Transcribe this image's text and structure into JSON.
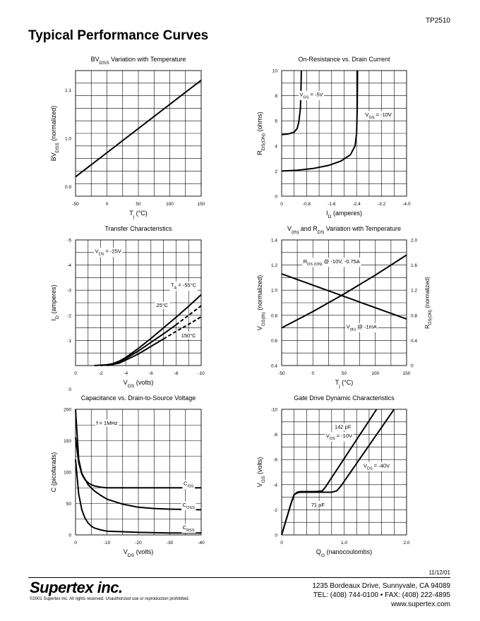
{
  "header": {
    "part_number": "TP2510",
    "section_title": "Typical Performance Curves"
  },
  "footer": {
    "date": "11/12/01",
    "logo_text": "Supertex inc.",
    "copyright": "©2001 Supertex Inc. All rights reserved. Unauthorized use or reproduction prohibited.",
    "address": "1235 Bordeaux  Drive, Sunnyvale, CA 94089",
    "phone_fax": "TEL: (408) 744-0100 • FAX: (408) 222-4895",
    "website": "www.supertex.com"
  },
  "chart_data": [
    {
      "type": "line",
      "title": "BV|DSS| Variation with Temperature",
      "xlabel": "T|j| (°C)",
      "ylabel": "BV|DSS| (normalized)",
      "xlim": [
        -50,
        150
      ],
      "ylim": [
        0.88,
        1.14
      ],
      "x_ticks": [
        -50,
        0,
        50,
        100,
        150
      ],
      "x_tick_labels": [
        "-50",
        "0",
        "50",
        "100",
        "150"
      ],
      "y_ticks": [
        0.9,
        1.0,
        1.1
      ],
      "y_tick_labels": [
        "0.9",
        "1.0",
        "1.1"
      ],
      "grid": true,
      "series": [
        {
          "x": [
            -50,
            150
          ],
          "y": [
            0.92,
            1.12
          ],
          "dashed": false
        }
      ],
      "annotations": []
    },
    {
      "type": "line",
      "title": "On-Resistance vs. Drain Current",
      "xlabel": "I|D| (amperes)",
      "ylabel": "R|DS(ON)| (ohms)",
      "xlim": [
        0,
        -4.0
      ],
      "ylim": [
        0,
        10
      ],
      "x_ticks": [
        0,
        -0.8,
        -1.6,
        -2.4,
        -3.2,
        -4.0
      ],
      "x_tick_labels": [
        "0",
        "-0.8",
        "-1.6",
        "-2.4",
        "-3.2",
        "-4.0"
      ],
      "y_ticks": [
        0,
        2,
        4,
        6,
        8,
        10
      ],
      "y_tick_labels": [
        "0",
        "2",
        "4",
        "6",
        "8",
        "10"
      ],
      "grid": true,
      "series": [
        {
          "name": "V|GS| = -5V",
          "x": [
            0,
            -0.2,
            -0.4,
            -0.5,
            -0.55,
            -0.6,
            -0.62,
            -0.63
          ],
          "y": [
            4.9,
            4.95,
            5.1,
            5.4,
            5.9,
            7.0,
            8.5,
            10
          ],
          "dashed": false
        },
        {
          "name": "V|GS| = -10V",
          "x": [
            0,
            -0.5,
            -1.0,
            -1.5,
            -1.9,
            -2.2,
            -2.35,
            -2.4,
            -2.42,
            -2.43
          ],
          "y": [
            2.0,
            2.07,
            2.2,
            2.45,
            2.8,
            3.3,
            4.0,
            5.0,
            7.0,
            10
          ],
          "dashed": false
        }
      ],
      "annotations": [
        {
          "text": "V|GS| = -5V",
          "x": -0.95,
          "y": 8.1
        },
        {
          "text": "V|GS| = -10V",
          "x": -3.1,
          "y": 6.5
        }
      ]
    },
    {
      "type": "line",
      "title": "Transfer Characteristics",
      "xlabel": "V|GS| (volts)",
      "ylabel": "I|D| (amperes)",
      "xlim": [
        0,
        -10
      ],
      "ylim": [
        0,
        -5
      ],
      "x_ticks": [
        0,
        -2,
        -4,
        -6,
        -8,
        -10
      ],
      "x_tick_labels": [
        "0",
        "-2",
        "-4",
        "-6",
        "-8",
        "-10"
      ],
      "y_ticks": [
        -1,
        -2,
        -3,
        -4,
        -5
      ],
      "y_tick_labels": [
        "-1",
        "-2",
        "-3",
        "-4",
        "-5"
      ],
      "extra_labels": [
        "0"
      ],
      "grid": true,
      "series": [
        {
          "name": "T|A| = -55°C",
          "x": [
            -1.5,
            -2.5,
            -3.0,
            -3.5,
            -4.0,
            -5,
            -6,
            -7,
            -8,
            -9,
            -10
          ],
          "y": [
            0,
            -0.03,
            -0.08,
            -0.18,
            -0.32,
            -0.68,
            -1.08,
            -1.5,
            -1.92,
            -2.36,
            -2.82
          ],
          "dashed": false
        },
        {
          "name": "25°C",
          "x": [
            -2.0,
            -3.0,
            -3.5,
            -4.0,
            -5,
            -6,
            -7,
            -8
          ],
          "y": [
            0,
            -0.06,
            -0.16,
            -0.28,
            -0.58,
            -0.92,
            -1.26,
            -1.62
          ],
          "dashed": false
        },
        {
          "name": "25°C-dashed",
          "x": [
            -8,
            -9,
            -10
          ],
          "y": [
            -1.62,
            -2.0,
            -2.38
          ],
          "dashed": true
        },
        {
          "name": "150°C",
          "x": [
            -2.5,
            -3.5,
            -4.0,
            -5,
            -6,
            -7
          ],
          "y": [
            0,
            -0.1,
            -0.22,
            -0.46,
            -0.76,
            -1.06
          ],
          "dashed": false
        },
        {
          "name": "150°C-dashed",
          "x": [
            -7,
            -8,
            -9,
            -10
          ],
          "y": [
            -1.06,
            -1.36,
            -1.64,
            -1.94
          ],
          "dashed": true
        }
      ],
      "annotations": [
        {
          "text": "V|DS| = -25V",
          "x": -2.6,
          "y": -4.55
        },
        {
          "text": "T|A| = -55°C",
          "x": -8.6,
          "y": -3.2
        },
        {
          "text": "25°C",
          "x": -6.9,
          "y": -2.4
        },
        {
          "text": "150°C",
          "x": -9.0,
          "y": -1.2
        }
      ]
    },
    {
      "type": "line",
      "title": "V|(th)| and R|DS| Variation with Temperature",
      "xlabel": "T|j| (°C)",
      "ylabel": "V|GS(th)| (normalized)",
      "ylabel_right": "R|DS(ON)| (normalized)",
      "xlim": [
        -50,
        150
      ],
      "ylim": [
        0.4,
        1.4
      ],
      "y2lim": [
        0,
        2.0
      ],
      "x_ticks": [
        -50,
        0,
        50,
        100,
        150
      ],
      "x_tick_labels": [
        "-50",
        "0",
        "50",
        "100",
        "150"
      ],
      "y_ticks": [
        0.4,
        0.6,
        0.8,
        1.0,
        1.2,
        1.4
      ],
      "y_tick_labels": [
        "0.4",
        "0.6",
        "0.8",
        "1.0",
        "1.2",
        "1.4"
      ],
      "y2_ticks": [
        0,
        0.4,
        0.8,
        1.2,
        1.6,
        2.0
      ],
      "y2_tick_labels": [
        "0",
        "0.4",
        "0.8",
        "1.2",
        "1.6",
        "2.0"
      ],
      "grid": true,
      "series": [
        {
          "name": "R|DS (ON)| @ -10V, -0.75A",
          "x": [
            -50,
            0,
            50,
            100,
            150
          ],
          "y": [
            0.7,
            0.83,
            0.97,
            1.12,
            1.28
          ],
          "dashed": false
        },
        {
          "name": "V|(th)| @ -1mA",
          "x": [
            -50,
            0,
            50,
            100,
            150
          ],
          "y": [
            1.13,
            1.04,
            0.95,
            0.86,
            0.77
          ],
          "dashed": false
        }
      ],
      "annotations": [
        {
          "text": "R|DS (ON)| @ -10V, -0.75A",
          "x": 30,
          "y": 1.23
        },
        {
          "text": "V|(th)| @ -1mA",
          "x": 78,
          "y": 0.71
        }
      ]
    },
    {
      "type": "line",
      "title": "Capacitance vs. Drain-to-Source Voltage",
      "xlabel": "V|DS| (volts)",
      "ylabel": "C (picofarads)",
      "xlim": [
        0,
        -40
      ],
      "ylim": [
        0,
        200
      ],
      "x_ticks": [
        0,
        -10,
        -20,
        -30,
        -40
      ],
      "x_tick_labels": [
        "0",
        "-10",
        "-20",
        "-30",
        "-40"
      ],
      "y_ticks": [
        0,
        50,
        100,
        150,
        200
      ],
      "y_tick_labels": [
        "0",
        "50",
        "100",
        "150",
        "200"
      ],
      "grid": true,
      "series": [
        {
          "name": "C|ISS|",
          "x": [
            0,
            -1,
            -2,
            -3,
            -4,
            -5,
            -6,
            -8,
            -10,
            -40
          ],
          "y": [
            155,
            115,
            97,
            88,
            83,
            80,
            78,
            76,
            75,
            75
          ],
          "dashed": false
        },
        {
          "name": "C|OSS|",
          "x": [
            0,
            -1,
            -2,
            -4,
            -6,
            -8,
            -10,
            -15,
            -20,
            -25,
            -30,
            -40
          ],
          "y": [
            200,
            120,
            98,
            80,
            70,
            63,
            57,
            49,
            44,
            42,
            41,
            40
          ],
          "dashed": false
        },
        {
          "name": "C|RSS|",
          "x": [
            0,
            -1,
            -2,
            -3,
            -4,
            -5,
            -6,
            -8,
            -10,
            -15,
            -20,
            -30,
            -40
          ],
          "y": [
            120,
            65,
            40,
            27,
            19,
            14,
            11,
            8,
            6,
            5,
            4,
            3,
            3
          ],
          "dashed": false
        }
      ],
      "annotations": [
        {
          "text": "f = 1MHz",
          "x": -10,
          "y": 178
        },
        {
          "text": "C|ISS|",
          "x": -36,
          "y": 82
        },
        {
          "text": "C|OSS|",
          "x": -36,
          "y": 48
        },
        {
          "text": "C|RSS|",
          "x": -36,
          "y": 12
        }
      ]
    },
    {
      "type": "line",
      "title": "Gate Drive Dynamic Characteristics",
      "xlabel": "Q|G| (nanocoulombs)",
      "ylabel": "V|GS| (volts)",
      "xlim": [
        0,
        2.0
      ],
      "ylim": [
        0,
        -10
      ],
      "x_ticks": [
        0,
        1.0,
        2.0
      ],
      "x_tick_labels": [
        "0",
        "1.0",
        "2.0"
      ],
      "y_ticks": [
        0,
        -2,
        -4,
        -6,
        -8,
        -10
      ],
      "y_tick_labels": [
        "0",
        "-2",
        "-4",
        "-6",
        "-8",
        "-10"
      ],
      "grid": true,
      "series": [
        {
          "name": "V|DS| = -10V",
          "x": [
            0,
            0.15,
            0.2,
            0.25,
            0.3,
            0.55,
            0.65,
            0.7,
            1.52
          ],
          "y": [
            0,
            -2.5,
            -3.2,
            -3.4,
            -3.45,
            -3.45,
            -3.5,
            -3.8,
            -10
          ],
          "dashed": false
        },
        {
          "name": "V|DS| = -40V",
          "x": [
            0,
            0.15,
            0.2,
            0.25,
            0.3,
            0.8,
            0.88,
            0.95,
            1.8
          ],
          "y": [
            0,
            -2.5,
            -3.2,
            -3.35,
            -3.4,
            -3.4,
            -3.5,
            -3.9,
            -10
          ],
          "dashed": false
        }
      ],
      "annotations": [
        {
          "text": "142 pF",
          "x": 0.98,
          "y": -8.6
        },
        {
          "text": "V|DS| = -10V",
          "x": 0.92,
          "y": -7.9
        },
        {
          "text": "V|DS| = -40V",
          "x": 1.52,
          "y": -5.5
        },
        {
          "text": "71 pF",
          "x": 0.58,
          "y": -2.4
        }
      ]
    }
  ]
}
